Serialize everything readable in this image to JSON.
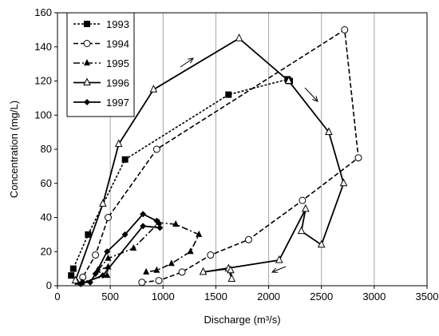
{
  "chart_data": {
    "type": "scatter",
    "title": "",
    "xlabel": "Discharge (m³/s)",
    "ylabel": "Concentration (mg/L)",
    "xlim": [
      0,
      3500
    ],
    "ylim": [
      0,
      160
    ],
    "xticks": [
      0,
      500,
      1000,
      1500,
      2000,
      2500,
      3000,
      3500
    ],
    "yticks": [
      0,
      20,
      40,
      60,
      80,
      100,
      120,
      140,
      160
    ],
    "grid": "vertical",
    "legend_position": "top-left",
    "series": [
      {
        "name": "1993",
        "marker": "square-filled",
        "line": "short-dash",
        "color": "#000000",
        "points": [
          [
            130,
            6
          ],
          [
            150,
            10
          ],
          [
            290,
            30
          ],
          [
            640,
            74
          ],
          [
            1620,
            112
          ],
          [
            2180,
            121
          ],
          [
            2200,
            120
          ]
        ]
      },
      {
        "name": "1994",
        "marker": "circle-open",
        "line": "dash",
        "color": "#000000",
        "points": [
          [
            800,
            2
          ],
          [
            960,
            3
          ],
          [
            1180,
            8
          ],
          [
            1450,
            18
          ],
          [
            1810,
            27
          ],
          [
            2320,
            50
          ],
          [
            2850,
            75
          ],
          [
            2720,
            150
          ],
          [
            940,
            80
          ],
          [
            480,
            40
          ],
          [
            360,
            18
          ],
          [
            240,
            5
          ]
        ]
      },
      {
        "name": "1995",
        "marker": "triangle-filled",
        "line": "dash-dot",
        "color": "#000000",
        "points": [
          [
            190,
            2
          ],
          [
            230,
            2
          ],
          [
            470,
            6
          ],
          [
            480,
            11
          ],
          [
            380,
            9
          ],
          [
            480,
            16
          ],
          [
            720,
            22
          ],
          [
            960,
            37
          ],
          [
            1120,
            36
          ],
          [
            1340,
            30
          ],
          [
            1260,
            20
          ],
          [
            1080,
            13
          ],
          [
            940,
            9
          ],
          [
            840,
            8
          ]
        ]
      },
      {
        "name": "1996",
        "marker": "triangle-open",
        "line": "solid",
        "color": "#000000",
        "points": [
          [
            170,
            3
          ],
          [
            430,
            48
          ],
          [
            580,
            83
          ],
          [
            910,
            115
          ],
          [
            1720,
            145
          ],
          [
            2190,
            120
          ],
          [
            2570,
            90
          ],
          [
            2710,
            60
          ],
          [
            2500,
            24
          ],
          [
            2310,
            32
          ],
          [
            2350,
            45
          ],
          [
            2100,
            15
          ],
          [
            1380,
            8
          ],
          [
            1620,
            10
          ],
          [
            1650,
            4
          ],
          [
            1640,
            9
          ]
        ]
      },
      {
        "name": "1997",
        "marker": "diamond-filled",
        "line": "solid",
        "color": "#000000",
        "points": [
          [
            240,
            2
          ],
          [
            310,
            2
          ],
          [
            360,
            7
          ],
          [
            470,
            20
          ],
          [
            640,
            30
          ],
          [
            810,
            42
          ],
          [
            940,
            38
          ],
          [
            970,
            34
          ],
          [
            810,
            35
          ],
          [
            430,
            6
          ],
          [
            220,
            1
          ]
        ]
      }
    ],
    "annotations": [
      "arrow-rising-limb",
      "arrow-falling-limb",
      "arrow-return-limb"
    ]
  }
}
